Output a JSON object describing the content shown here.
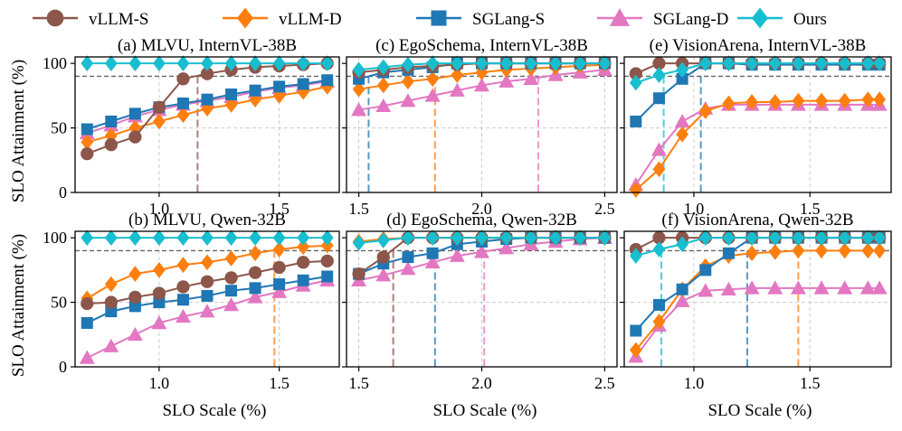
{
  "legend": [
    {
      "label": "vLLM-S",
      "color": "#8c564b",
      "marker": "circle"
    },
    {
      "label": "vLLM-D",
      "color": "#ff7f0e",
      "marker": "diamond"
    },
    {
      "label": "SGLang-S",
      "color": "#1f77b4",
      "marker": "square"
    },
    {
      "label": "SGLang-D",
      "color": "#e377c2",
      "marker": "triangle"
    },
    {
      "label": "Ours",
      "color": "#17becf",
      "marker": "diamond"
    }
  ],
  "y_label": "SLO Attainment (%)",
  "x_label": "SLO Scale (%)",
  "chart_data": [
    {
      "type": "line",
      "title": "(a) MLVU, InternVL-38B",
      "xlim": [
        0.65,
        1.75
      ],
      "ylim": [
        0,
        105
      ],
      "xticks": [
        1.0,
        1.5
      ],
      "yticks": [
        0,
        50,
        100
      ],
      "threshold": 90,
      "x": [
        0.7,
        0.8,
        0.9,
        1.0,
        1.1,
        1.2,
        1.3,
        1.4,
        1.5,
        1.6,
        1.7
      ],
      "series": [
        {
          "name": "vLLM-S",
          "values": [
            30,
            37,
            43,
            66,
            88,
            92,
            95,
            97,
            98,
            99,
            100
          ]
        },
        {
          "name": "vLLM-D",
          "values": [
            39,
            44,
            50,
            55,
            60,
            65,
            68,
            72,
            75,
            78,
            82
          ]
        },
        {
          "name": "SGLang-S",
          "values": [
            49,
            55,
            61,
            66,
            69,
            72,
            76,
            79,
            82,
            84,
            87
          ]
        },
        {
          "name": "SGLang-D",
          "values": [
            46,
            52,
            59,
            64,
            68,
            71,
            74,
            78,
            81,
            83,
            86
          ]
        },
        {
          "name": "Ours",
          "values": [
            100,
            100,
            100,
            100,
            100,
            100,
            100,
            100,
            100,
            100,
            100
          ]
        }
      ],
      "crossings": [
        {
          "series": "vLLM-S",
          "x": 1.16
        }
      ]
    },
    {
      "type": "line",
      "title": "(c) EgoSchema, InternVL-38B",
      "xlim": [
        1.45,
        2.55
      ],
      "ylim": [
        0,
        105
      ],
      "xticks": [
        1.5,
        2.0,
        2.5
      ],
      "yticks": [
        0,
        50,
        100
      ],
      "threshold": 90,
      "x": [
        1.5,
        1.6,
        1.7,
        1.8,
        1.9,
        2.0,
        2.1,
        2.2,
        2.3,
        2.4,
        2.5
      ],
      "series": [
        {
          "name": "vLLM-S",
          "values": [
            93,
            95,
            97,
            98,
            99,
            100,
            100,
            100,
            100,
            100,
            100
          ]
        },
        {
          "name": "vLLM-D",
          "values": [
            80,
            83,
            86,
            88,
            91,
            93,
            95,
            96,
            97,
            98,
            99
          ]
        },
        {
          "name": "SGLang-S",
          "values": [
            88,
            93,
            95,
            97,
            100,
            100,
            100,
            100,
            100,
            100,
            100
          ]
        },
        {
          "name": "SGLang-D",
          "values": [
            64,
            67,
            71,
            75,
            79,
            83,
            86,
            88,
            91,
            93,
            95
          ]
        },
        {
          "name": "Ours",
          "values": [
            95,
            97,
            99,
            100,
            100,
            100,
            100,
            100,
            100,
            100,
            100
          ]
        }
      ],
      "crossings": [
        {
          "series": "SGLang-S",
          "x": 1.54
        },
        {
          "series": "vLLM-D",
          "x": 1.81
        },
        {
          "series": "SGLang-D",
          "x": 2.23
        }
      ]
    },
    {
      "type": "line",
      "title": "(e) VisionArena, InternVL-38B",
      "xlim": [
        0.7,
        1.85
      ],
      "ylim": [
        0,
        105
      ],
      "xticks": [
        1.0,
        1.5
      ],
      "yticks": [
        0,
        50,
        100
      ],
      "threshold": 90,
      "x": [
        0.75,
        0.85,
        0.95,
        1.05,
        1.15,
        1.25,
        1.35,
        1.45,
        1.55,
        1.65,
        1.75,
        1.8
      ],
      "series": [
        {
          "name": "vLLM-S",
          "values": [
            92,
            100,
            100,
            100,
            100,
            100,
            100,
            100,
            100,
            100,
            100,
            100
          ]
        },
        {
          "name": "vLLM-D",
          "values": [
            2,
            18,
            45,
            63,
            69,
            70,
            70,
            71,
            71,
            71,
            72,
            72
          ]
        },
        {
          "name": "SGLang-S",
          "values": [
            55,
            73,
            88,
            100,
            100,
            99,
            99,
            99,
            99,
            99,
            99,
            99
          ]
        },
        {
          "name": "SGLang-D",
          "values": [
            6,
            33,
            55,
            65,
            68,
            68,
            68,
            68,
            68,
            68,
            68,
            68
          ]
        },
        {
          "name": "Ours",
          "values": [
            85,
            91,
            95,
            100,
            100,
            100,
            100,
            100,
            100,
            100,
            100,
            100
          ]
        }
      ],
      "crossings": [
        {
          "series": "Ours",
          "x": 0.87
        },
        {
          "series": "SGLang-S",
          "x": 1.03
        }
      ]
    },
    {
      "type": "line",
      "title": "(b) MLVU, Qwen-32B",
      "xlim": [
        0.65,
        1.75
      ],
      "ylim": [
        0,
        105
      ],
      "xticks": [
        1.0,
        1.5
      ],
      "yticks": [
        0,
        50,
        100
      ],
      "threshold": 90,
      "x": [
        0.7,
        0.8,
        0.9,
        1.0,
        1.1,
        1.2,
        1.3,
        1.4,
        1.5,
        1.6,
        1.7
      ],
      "series": [
        {
          "name": "vLLM-S",
          "values": [
            49,
            50,
            54,
            57,
            62,
            66,
            69,
            73,
            77,
            81,
            82
          ]
        },
        {
          "name": "vLLM-D",
          "values": [
            53,
            64,
            72,
            75,
            79,
            81,
            84,
            88,
            91,
            93,
            94
          ]
        },
        {
          "name": "SGLang-S",
          "values": [
            34,
            43,
            47,
            50,
            52,
            55,
            59,
            61,
            64,
            67,
            70
          ]
        },
        {
          "name": "SGLang-D",
          "values": [
            7,
            16,
            25,
            34,
            39,
            43,
            48,
            54,
            58,
            63,
            67
          ]
        },
        {
          "name": "Ours",
          "values": [
            100,
            100,
            100,
            100,
            100,
            100,
            100,
            100,
            100,
            100,
            100
          ]
        }
      ],
      "crossings": [
        {
          "series": "vLLM-D",
          "x": 1.48
        }
      ]
    },
    {
      "type": "line",
      "title": "(d) EgoSchema, Qwen-32B",
      "xlim": [
        1.45,
        2.55
      ],
      "ylim": [
        0,
        105
      ],
      "xticks": [
        1.5,
        2.0,
        2.5
      ],
      "yticks": [
        0,
        50,
        100
      ],
      "threshold": 90,
      "x": [
        1.5,
        1.6,
        1.7,
        1.8,
        1.9,
        2.0,
        2.1,
        2.2,
        2.3,
        2.4,
        2.5
      ],
      "series": [
        {
          "name": "vLLM-S",
          "values": [
            72,
            85,
            100,
            100,
            100,
            100,
            100,
            100,
            100,
            100,
            100
          ]
        },
        {
          "name": "vLLM-D",
          "values": [
            97,
            99,
            100,
            100,
            100,
            100,
            100,
            100,
            100,
            100,
            100
          ]
        },
        {
          "name": "SGLang-S",
          "values": [
            72,
            80,
            85,
            88,
            95,
            97,
            99,
            100,
            100,
            100,
            100
          ]
        },
        {
          "name": "SGLang-D",
          "values": [
            67,
            71,
            76,
            81,
            86,
            89,
            92,
            95,
            97,
            99,
            100
          ]
        },
        {
          "name": "Ours",
          "values": [
            96,
            98,
            100,
            100,
            100,
            100,
            100,
            100,
            100,
            100,
            100
          ]
        }
      ],
      "crossings": [
        {
          "series": "vLLM-S",
          "x": 1.64
        },
        {
          "series": "SGLang-S",
          "x": 1.81
        },
        {
          "series": "SGLang-D",
          "x": 2.01
        }
      ]
    },
    {
      "type": "line",
      "title": "(f) VisionArena, Qwen-32B",
      "xlim": [
        0.7,
        1.85
      ],
      "ylim": [
        0,
        105
      ],
      "xticks": [
        1.0,
        1.5
      ],
      "yticks": [
        0,
        50,
        100
      ],
      "threshold": 90,
      "x": [
        0.75,
        0.85,
        0.95,
        1.05,
        1.15,
        1.25,
        1.35,
        1.45,
        1.55,
        1.65,
        1.75,
        1.8
      ],
      "series": [
        {
          "name": "vLLM-S",
          "values": [
            91,
            100,
            100,
            100,
            100,
            100,
            100,
            100,
            100,
            100,
            100,
            100
          ]
        },
        {
          "name": "vLLM-D",
          "values": [
            13,
            35,
            60,
            78,
            86,
            88,
            89,
            90,
            90,
            90,
            90,
            90
          ]
        },
        {
          "name": "SGLang-S",
          "values": [
            28,
            48,
            60,
            75,
            88,
            100,
            100,
            100,
            100,
            100,
            100,
            100
          ]
        },
        {
          "name": "SGLang-D",
          "values": [
            8,
            32,
            51,
            59,
            60,
            61,
            61,
            61,
            61,
            61,
            61,
            61
          ]
        },
        {
          "name": "Ours",
          "values": [
            86,
            91,
            95,
            100,
            100,
            100,
            100,
            100,
            100,
            100,
            100,
            100
          ]
        }
      ],
      "crossings": [
        {
          "series": "Ours",
          "x": 0.86
        },
        {
          "series": "SGLang-S",
          "x": 1.23
        },
        {
          "series": "vLLM-D",
          "x": 1.45
        }
      ]
    }
  ]
}
